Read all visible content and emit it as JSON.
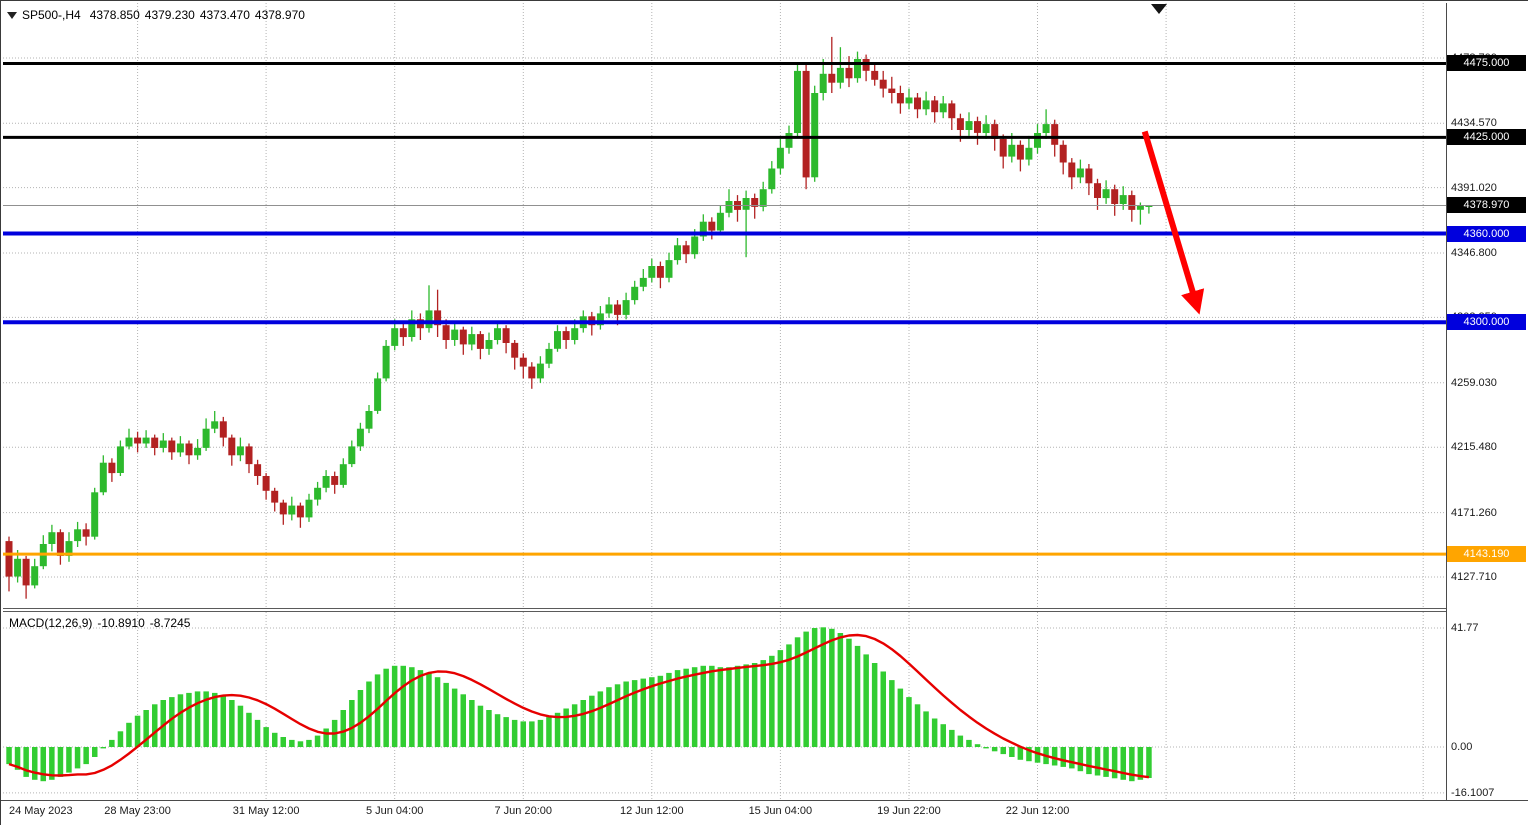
{
  "header": {
    "symbol_period": "SP500-,H4",
    "open": "4378.850",
    "high": "4379.230",
    "low": "4373.470",
    "close": "4378.970"
  },
  "indicator": {
    "name": "MACD(12,26,9)",
    "macd_value": "-10.8910",
    "signal_value": "-8.7245"
  },
  "icons": {
    "collapse_arrow": "down-triangle",
    "chart_shift_marker": "down-triangle"
  },
  "colors": {
    "bull": "#2db92d",
    "bear": "#b22222",
    "macd_histogram": "#32cd32",
    "macd_signal": "#e60000",
    "support_line": "#0000dd",
    "resistance_line": "#000000",
    "level_line": "#ffa500",
    "arrow": "#ff0000",
    "bid_line": "#909090"
  },
  "chart_data": {
    "type": "candlestick",
    "title": "SP500- H4 with MACD(12,26,9)",
    "symbol": "SP500-",
    "timeframe": "H4",
    "y_range": [
      4106,
      4516
    ],
    "macd_y_range": [
      -18.3,
      47.4
    ],
    "grid": true,
    "y_axis": {
      "grid_labels": [
        {
          "text": "4478.700",
          "price": 4478.7
        },
        {
          "text": "4434.570",
          "price": 4434.57
        },
        {
          "text": "4391.020",
          "price": 4391.02
        },
        {
          "text": "4346.800",
          "price": 4346.8
        },
        {
          "text": "4303.250",
          "price": 4303.25
        },
        {
          "text": "4259.030",
          "price": 4259.03
        },
        {
          "text": "4215.480",
          "price": 4215.48
        },
        {
          "text": "4171.260",
          "price": 4171.26
        },
        {
          "text": "4127.710",
          "price": 4127.71
        }
      ],
      "badges": [
        {
          "text": "4475.000",
          "price": 4475.0,
          "bg": "#000000",
          "fg": "#ffffff",
          "name": "hline-label-4475"
        },
        {
          "text": "4425.000",
          "price": 4425.0,
          "bg": "#000000",
          "fg": "#ffffff",
          "name": "hline-label-4425"
        },
        {
          "text": "4378.970",
          "price": 4378.97,
          "bg": "#000000",
          "fg": "#ffffff",
          "name": "current-price-label"
        },
        {
          "text": "4360.000",
          "price": 4360.0,
          "bg": "#0000dd",
          "fg": "#ffffff",
          "name": "hline-label-4360"
        },
        {
          "text": "4300.000",
          "price": 4300.0,
          "bg": "#0000dd",
          "fg": "#ffffff",
          "name": "hline-label-4300"
        },
        {
          "text": "4143.190",
          "price": 4143.19,
          "bg": "#ffa500",
          "fg": "#ffffff",
          "name": "hline-label-4143"
        }
      ]
    },
    "x_axis": {
      "labels": [
        {
          "text": "24 May 2023",
          "bar": 0,
          "align": "left"
        },
        {
          "text": "28 May 23:00",
          "bar": 15
        },
        {
          "text": "31 May 12:00",
          "bar": 30
        },
        {
          "text": "5 Jun 04:00",
          "bar": 45
        },
        {
          "text": "7 Jun 20:00",
          "bar": 60
        },
        {
          "text": "12 Jun 12:00",
          "bar": 75
        },
        {
          "text": "15 Jun 04:00",
          "bar": 90
        },
        {
          "text": "19 Jun 22:00",
          "bar": 105
        },
        {
          "text": "22 Jun 12:00",
          "bar": 120
        }
      ],
      "gridline_every_bars": 15,
      "max_gridline_bar": 165
    },
    "horizontal_lines": [
      {
        "price": 4475.0,
        "color": "#000000",
        "width": 3
      },
      {
        "price": 4425.0,
        "color": "#000000",
        "width": 3
      },
      {
        "price": 4360.0,
        "color": "#0000dd",
        "width": 4
      },
      {
        "price": 4300.0,
        "color": "#0000dd",
        "width": 4
      },
      {
        "price": 4143.19,
        "color": "#ffa500",
        "width": 3
      }
    ],
    "current_price": 4378.97,
    "up_color": "#2db92d",
    "down_color": "#b22222",
    "candles": {
      "open": [
        4152,
        4128,
        4140,
        4122,
        4135,
        4150,
        4158,
        4142,
        4152,
        4160,
        4155,
        4185,
        4205,
        4198,
        4216,
        4222,
        4218,
        4222,
        4215,
        4220,
        4212,
        4218,
        4210,
        4215,
        4228,
        4233,
        4222,
        4210,
        4216,
        4204,
        4196,
        4186,
        4178,
        4170,
        4176,
        4168,
        4180,
        4188,
        4196,
        4190,
        4204,
        4216,
        4228,
        4240,
        4262,
        4284,
        4296,
        4290,
        4302,
        4296,
        4308,
        4298,
        4288,
        4295,
        4285,
        4292,
        4282,
        4288,
        4296,
        4286,
        4276,
        4270,
        4262,
        4272,
        4282,
        4294,
        4288,
        4296,
        4304,
        4298,
        4306,
        4312,
        4305,
        4315,
        4324,
        4330,
        4338,
        4330,
        4342,
        4352,
        4346,
        4358,
        4368,
        4362,
        4374,
        4382,
        4376,
        4384,
        4378,
        4390,
        4404,
        4418,
        4428,
        4470,
        4398,
        4455,
        4468,
        4462,
        4472,
        4465,
        4478,
        4470,
        4464,
        4458,
        4455,
        4448,
        4452,
        4444,
        4450,
        4442,
        4448,
        4438,
        4430,
        4436,
        4428,
        4434,
        4424,
        4412,
        4420,
        4410,
        4418,
        4428,
        4434,
        4420,
        4408,
        4398,
        4404,
        4394,
        4384,
        4390,
        4380,
        4386,
        4376,
        4378.85
      ],
      "high": [
        4155,
        4146,
        4142,
        4140,
        4156,
        4163,
        4160,
        4158,
        4165,
        4164,
        4188,
        4210,
        4208,
        4220,
        4228,
        4226,
        4227,
        4224,
        4225,
        4222,
        4223,
        4220,
        4221,
        4235,
        4240,
        4236,
        4224,
        4222,
        4218,
        4207,
        4198,
        4188,
        4180,
        4182,
        4178,
        4184,
        4192,
        4200,
        4199,
        4208,
        4220,
        4232,
        4244,
        4266,
        4288,
        4302,
        4300,
        4308,
        4306,
        4325,
        4322,
        4302,
        4300,
        4297,
        4297,
        4294,
        4293,
        4301,
        4298,
        4288,
        4279,
        4273,
        4277,
        4286,
        4298,
        4297,
        4302,
        4308,
        4307,
        4311,
        4317,
        4315,
        4320,
        4328,
        4336,
        4343,
        4341,
        4347,
        4357,
        4355,
        4363,
        4373,
        4371,
        4379,
        4390,
        4386,
        4389,
        4387,
        4395,
        4409,
        4424,
        4433,
        4476,
        4474,
        4460,
        4478,
        4493,
        4486,
        4480,
        4483,
        4481,
        4476,
        4470,
        4466,
        4460,
        4458,
        4455,
        4456,
        4453,
        4453,
        4450,
        4441,
        4442,
        4439,
        4440,
        4437,
        4427,
        4428,
        4423,
        4426,
        4434,
        4444,
        4437,
        4423,
        4411,
        4410,
        4407,
        4397,
        4396,
        4393,
        4392,
        4389,
        4381,
        4379.23
      ],
      "low": [
        4118,
        4124,
        4113,
        4120,
        4133,
        4145,
        4136,
        4138,
        4148,
        4149,
        4153,
        4183,
        4192,
        4196,
        4214,
        4212,
        4215,
        4210,
        4212,
        4207,
        4209,
        4204,
        4207,
        4213,
        4225,
        4216,
        4203,
        4206,
        4198,
        4190,
        4180,
        4172,
        4163,
        4166,
        4161,
        4165,
        4176,
        4185,
        4184,
        4188,
        4202,
        4213,
        4225,
        4238,
        4260,
        4281,
        4284,
        4287,
        4288,
        4293,
        4290,
        4282,
        4284,
        4278,
        4281,
        4275,
        4278,
        4285,
        4279,
        4268,
        4262,
        4255,
        4259,
        4269,
        4280,
        4282,
        4285,
        4293,
        4291,
        4295,
        4303,
        4298,
        4302,
        4312,
        4321,
        4327,
        4323,
        4327,
        4339,
        4340,
        4343,
        4355,
        4356,
        4359,
        4371,
        4368,
        4344,
        4370,
        4375,
        4387,
        4400,
        4414,
        4425,
        4390,
        4395,
        4450,
        4455,
        4458,
        4459,
        4462,
        4463,
        4460,
        4452,
        4448,
        4441,
        4444,
        4438,
        4440,
        4435,
        4438,
        4430,
        4422,
        4426,
        4420,
        4424,
        4416,
        4404,
        4408,
        4402,
        4406,
        4414,
        4424,
        4412,
        4400,
        4390,
        4394,
        4386,
        4376,
        4380,
        4372,
        4376,
        4368,
        4366,
        4373.47
      ],
      "close": [
        4128,
        4140,
        4122,
        4135,
        4150,
        4158,
        4142,
        4152,
        4160,
        4155,
        4185,
        4205,
        4198,
        4216,
        4222,
        4218,
        4222,
        4215,
        4220,
        4212,
        4218,
        4210,
        4215,
        4228,
        4233,
        4222,
        4210,
        4216,
        4204,
        4196,
        4186,
        4178,
        4170,
        4176,
        4168,
        4180,
        4188,
        4196,
        4190,
        4204,
        4216,
        4228,
        4240,
        4262,
        4284,
        4296,
        4290,
        4302,
        4296,
        4308,
        4298,
        4288,
        4295,
        4285,
        4292,
        4282,
        4288,
        4296,
        4286,
        4276,
        4270,
        4262,
        4272,
        4282,
        4294,
        4288,
        4296,
        4304,
        4298,
        4306,
        4312,
        4305,
        4315,
        4324,
        4330,
        4338,
        4330,
        4342,
        4352,
        4346,
        4358,
        4368,
        4362,
        4374,
        4382,
        4376,
        4384,
        4378,
        4390,
        4404,
        4418,
        4428,
        4470,
        4398,
        4455,
        4468,
        4462,
        4472,
        4465,
        4478,
        4470,
        4464,
        4458,
        4455,
        4448,
        4452,
        4444,
        4450,
        4442,
        4448,
        4438,
        4430,
        4436,
        4428,
        4434,
        4424,
        4412,
        4420,
        4410,
        4418,
        4428,
        4434,
        4420,
        4408,
        4398,
        4404,
        4394,
        4384,
        4390,
        4380,
        4386,
        4376,
        4379,
        4378.97
      ]
    },
    "macd": {
      "label": "MACD(12,26,9)",
      "current_macd": -10.891,
      "current_signal": -8.7245,
      "signal_sma_period": 9,
      "color": "#32cd32",
      "signal_color": "#e60000",
      "histogram": [
        -6,
        -8,
        -10.5,
        -11.5,
        -12,
        -11.5,
        -10.5,
        -9,
        -7.5,
        -6,
        -3.5,
        -0.5,
        2.5,
        5.5,
        8.5,
        11,
        13,
        15,
        16.5,
        17.5,
        18.5,
        19,
        19.5,
        19.5,
        19,
        18,
        16.5,
        14.5,
        12,
        9.5,
        7,
        5,
        3.5,
        2.5,
        2,
        2.5,
        4,
        6.5,
        9.5,
        13,
        16.5,
        20,
        23,
        25.5,
        27.5,
        28.5,
        28.5,
        28,
        27,
        26,
        24.5,
        22.5,
        20.5,
        18.5,
        16.5,
        14.5,
        13,
        11.5,
        10.5,
        9.5,
        9,
        9,
        9.5,
        10.5,
        12,
        13.5,
        15,
        16.5,
        18,
        19.5,
        21,
        22,
        23,
        23.5,
        24,
        24.5,
        25,
        26,
        27,
        27.5,
        28,
        28.5,
        28.5,
        28,
        28,
        28.5,
        29,
        29.5,
        30.5,
        32,
        34,
        36,
        38.5,
        40.5,
        41.77,
        42,
        41.5,
        40,
        38,
        35.5,
        32.5,
        29.5,
        26.5,
        23.5,
        20.5,
        17.5,
        15,
        12.5,
        10,
        8,
        6,
        4,
        2.5,
        1,
        -0.5,
        -1.5,
        -2.5,
        -3.5,
        -4.5,
        -5,
        -5.5,
        -6,
        -6.5,
        -7,
        -7.5,
        -8.5,
        -9.5,
        -10,
        -10.5,
        -11,
        -11.5,
        -12,
        -11.5,
        -10.891
      ]
    },
    "macd_axis_labels": [
      {
        "text": "41.77",
        "value": 41.77
      },
      {
        "text": "0.00",
        "value": 0.0
      },
      {
        "text": "-16.1007",
        "value": -16.1007
      }
    ],
    "arrow_annotation": {
      "from": {
        "bar": 132.5,
        "price": 4429
      },
      "to": {
        "bar": 138.7,
        "price": 4309
      },
      "color": "#ff0000",
      "width": 6
    }
  }
}
